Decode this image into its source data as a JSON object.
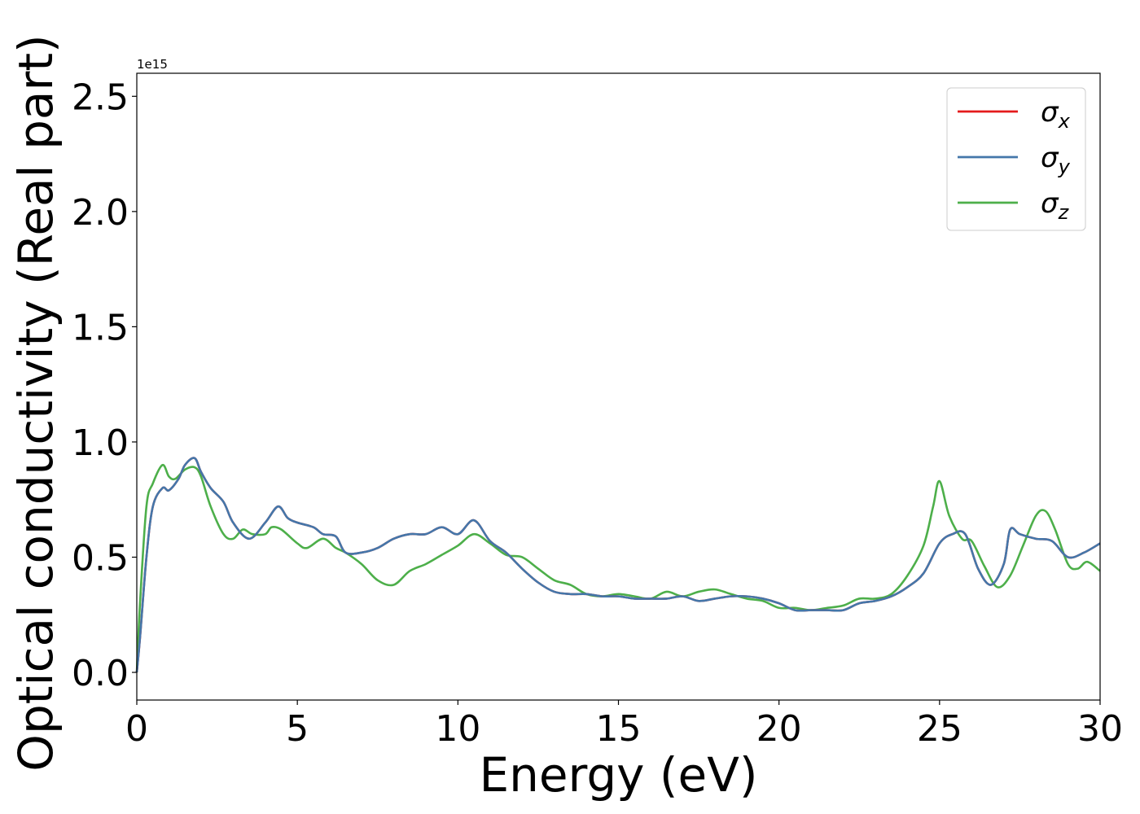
{
  "chart_data": {
    "type": "line",
    "xlabel": "Energy (eV)",
    "ylabel": "Optical conductivity (Real part)",
    "y_offset_text": "1e15",
    "xlim": [
      0,
      30
    ],
    "ylim": [
      -0.12,
      2.6
    ],
    "x_ticks": [
      0,
      5,
      10,
      15,
      20,
      25,
      30
    ],
    "x_tick_labels": [
      "0",
      "5",
      "10",
      "15",
      "20",
      "25",
      "30"
    ],
    "y_ticks": [
      0.0,
      0.5,
      1.0,
      1.5,
      2.0,
      2.5
    ],
    "y_tick_labels": [
      "0.0",
      "0.5",
      "1.0",
      "1.5",
      "2.0",
      "2.5"
    ],
    "legend_position": "top-right",
    "grid": false,
    "series": [
      {
        "name": "σx",
        "symbol": "σ",
        "subscript": "x",
        "color": "#e41a1c",
        "x": [
          0,
          0.1,
          0.3,
          0.5,
          0.8,
          1.0,
          1.3,
          1.5,
          1.8,
          2.0,
          2.3,
          2.7,
          3.0,
          3.5,
          4.0,
          4.4,
          4.7,
          5.0,
          5.5,
          5.8,
          6.2,
          6.5,
          7.0,
          7.5,
          8.0,
          8.5,
          9.0,
          9.5,
          10.0,
          10.5,
          11.0,
          11.5,
          12.0,
          12.5,
          13.0,
          13.5,
          14.0,
          14.5,
          15.0,
          15.5,
          16.0,
          16.5,
          17.0,
          17.5,
          18.0,
          18.5,
          19.0,
          19.5,
          20.0,
          20.5,
          21.0,
          21.5,
          22.0,
          22.5,
          23.0,
          23.5,
          24.0,
          24.5,
          25.0,
          25.4,
          25.8,
          26.2,
          26.6,
          27.0,
          27.2,
          27.5,
          28.0,
          28.5,
          29.0,
          29.5,
          30.0
        ],
        "values": [
          0.0,
          0.15,
          0.5,
          0.72,
          0.8,
          0.79,
          0.84,
          0.9,
          0.93,
          0.87,
          0.8,
          0.74,
          0.65,
          0.58,
          0.65,
          0.72,
          0.67,
          0.65,
          0.63,
          0.6,
          0.59,
          0.52,
          0.52,
          0.54,
          0.58,
          0.6,
          0.6,
          0.63,
          0.6,
          0.66,
          0.57,
          0.52,
          0.45,
          0.39,
          0.35,
          0.34,
          0.34,
          0.33,
          0.33,
          0.32,
          0.32,
          0.32,
          0.33,
          0.31,
          0.32,
          0.33,
          0.33,
          0.32,
          0.3,
          0.27,
          0.27,
          0.27,
          0.27,
          0.3,
          0.31,
          0.33,
          0.37,
          0.43,
          0.56,
          0.6,
          0.6,
          0.45,
          0.38,
          0.47,
          0.62,
          0.6,
          0.58,
          0.57,
          0.5,
          0.52,
          0.56
        ]
      },
      {
        "name": "σy",
        "symbol": "σ",
        "subscript": "y",
        "color": "#4477aa",
        "x": [
          0,
          0.1,
          0.3,
          0.5,
          0.8,
          1.0,
          1.3,
          1.5,
          1.8,
          2.0,
          2.3,
          2.7,
          3.0,
          3.5,
          4.0,
          4.4,
          4.7,
          5.0,
          5.5,
          5.8,
          6.2,
          6.5,
          7.0,
          7.5,
          8.0,
          8.5,
          9.0,
          9.5,
          10.0,
          10.5,
          11.0,
          11.5,
          12.0,
          12.5,
          13.0,
          13.5,
          14.0,
          14.5,
          15.0,
          15.5,
          16.0,
          16.5,
          17.0,
          17.5,
          18.0,
          18.5,
          19.0,
          19.5,
          20.0,
          20.5,
          21.0,
          21.5,
          22.0,
          22.5,
          23.0,
          23.5,
          24.0,
          24.5,
          25.0,
          25.4,
          25.8,
          26.2,
          26.6,
          27.0,
          27.2,
          27.5,
          28.0,
          28.5,
          29.0,
          29.5,
          30.0
        ],
        "values": [
          0.0,
          0.15,
          0.5,
          0.72,
          0.8,
          0.79,
          0.84,
          0.9,
          0.93,
          0.87,
          0.8,
          0.74,
          0.65,
          0.58,
          0.65,
          0.72,
          0.67,
          0.65,
          0.63,
          0.6,
          0.59,
          0.52,
          0.52,
          0.54,
          0.58,
          0.6,
          0.6,
          0.63,
          0.6,
          0.66,
          0.57,
          0.52,
          0.45,
          0.39,
          0.35,
          0.34,
          0.34,
          0.33,
          0.33,
          0.32,
          0.32,
          0.32,
          0.33,
          0.31,
          0.32,
          0.33,
          0.33,
          0.32,
          0.3,
          0.27,
          0.27,
          0.27,
          0.27,
          0.3,
          0.31,
          0.33,
          0.37,
          0.43,
          0.56,
          0.6,
          0.6,
          0.45,
          0.38,
          0.47,
          0.62,
          0.6,
          0.58,
          0.57,
          0.5,
          0.52,
          0.56
        ]
      },
      {
        "name": "σz",
        "symbol": "σ",
        "subscript": "z",
        "color": "#4daf4a",
        "x": [
          0,
          0.1,
          0.3,
          0.5,
          0.8,
          1.0,
          1.2,
          1.5,
          1.8,
          2.0,
          2.3,
          2.7,
          3.0,
          3.3,
          3.6,
          4.0,
          4.2,
          4.5,
          5.0,
          5.3,
          5.8,
          6.2,
          6.5,
          7.0,
          7.5,
          8.0,
          8.5,
          9.0,
          9.5,
          10.0,
          10.5,
          11.0,
          11.5,
          12.0,
          12.5,
          13.0,
          13.5,
          14.0,
          14.5,
          15.0,
          15.5,
          16.0,
          16.5,
          17.0,
          17.5,
          18.0,
          18.5,
          19.0,
          19.5,
          20.0,
          20.5,
          21.0,
          21.5,
          22.0,
          22.5,
          23.0,
          23.5,
          24.0,
          24.5,
          24.8,
          25.0,
          25.3,
          25.7,
          26.0,
          26.4,
          26.8,
          27.2,
          27.6,
          28.0,
          28.3,
          28.6,
          29.0,
          29.3,
          29.6,
          30.0
        ],
        "values": [
          0.0,
          0.3,
          0.72,
          0.82,
          0.9,
          0.85,
          0.84,
          0.88,
          0.89,
          0.85,
          0.72,
          0.6,
          0.58,
          0.62,
          0.6,
          0.6,
          0.63,
          0.62,
          0.56,
          0.54,
          0.58,
          0.54,
          0.52,
          0.47,
          0.4,
          0.38,
          0.44,
          0.47,
          0.51,
          0.55,
          0.6,
          0.56,
          0.51,
          0.5,
          0.45,
          0.4,
          0.38,
          0.34,
          0.33,
          0.34,
          0.33,
          0.32,
          0.35,
          0.33,
          0.35,
          0.36,
          0.34,
          0.32,
          0.31,
          0.28,
          0.28,
          0.27,
          0.28,
          0.29,
          0.32,
          0.32,
          0.34,
          0.42,
          0.55,
          0.72,
          0.83,
          0.68,
          0.58,
          0.57,
          0.46,
          0.37,
          0.42,
          0.55,
          0.68,
          0.7,
          0.62,
          0.47,
          0.45,
          0.48,
          0.44
        ]
      }
    ]
  }
}
